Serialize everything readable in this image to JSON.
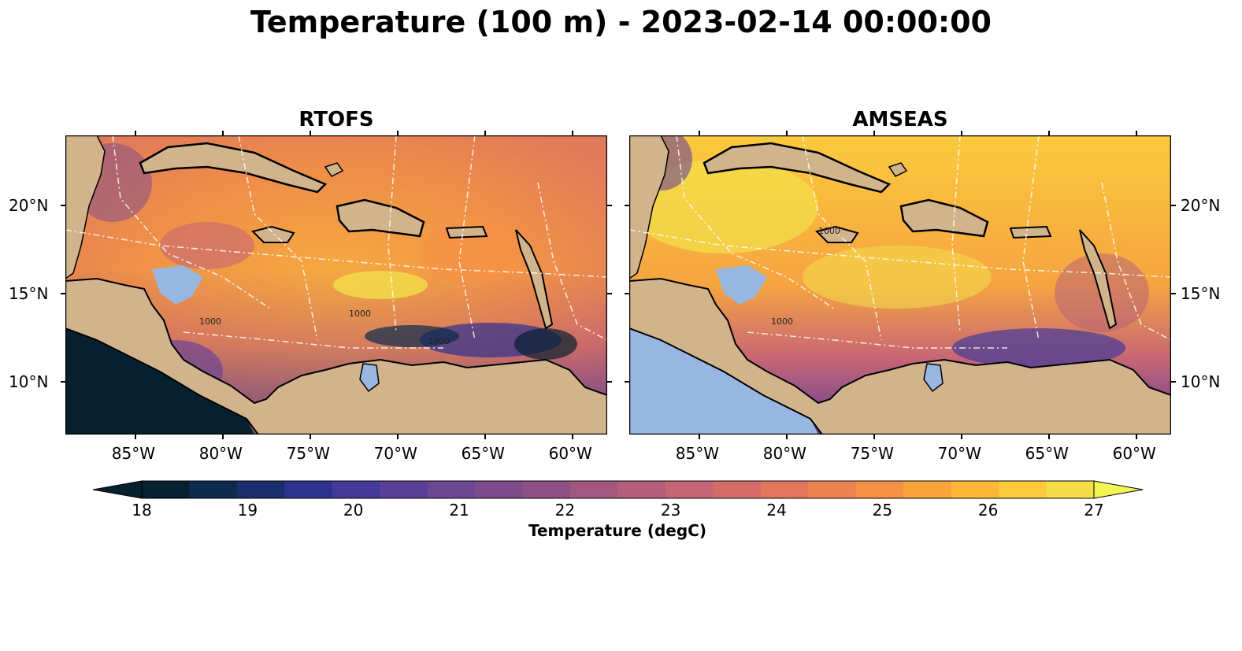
{
  "figure": {
    "title": "Temperature (100 m) - 2023-02-14 00:00:00"
  },
  "panels": [
    {
      "id": "rtofs",
      "title": "RTOFS"
    },
    {
      "id": "amseas",
      "title": "AMSEAS"
    }
  ],
  "axes": {
    "lon_ticks": [
      "85°W",
      "80°W",
      "75°W",
      "70°W",
      "65°W",
      "60°W"
    ],
    "lon_values": [
      -85,
      -80,
      -75,
      -70,
      -65,
      -60
    ],
    "lat_ticks": [
      "20°N",
      "15°N",
      "10°N"
    ],
    "lat_values": [
      20,
      15,
      10
    ],
    "lon_range": [
      -89,
      -58
    ],
    "lat_range": [
      7,
      24
    ]
  },
  "contour_labels": [
    "1000",
    "1000",
    "1000",
    "1000",
    "1000"
  ],
  "colorbar": {
    "label": "Temperature (degC)",
    "ticks": [
      "18",
      "19",
      "20",
      "21",
      "22",
      "23",
      "24",
      "25",
      "26",
      "27"
    ],
    "range": [
      18,
      27
    ],
    "extend": "both",
    "colors": [
      "#06202f",
      "#0c2b4d",
      "#1a2f6b",
      "#2e3190",
      "#453a9a",
      "#5a3f99",
      "#6c4593",
      "#7c4b8c",
      "#8f5086",
      "#a25781",
      "#b45e7b",
      "#c66575",
      "#d56c68",
      "#e4765c",
      "#ee8350",
      "#f69144",
      "#fba33b",
      "#fdb737",
      "#fbca3d",
      "#f3de4a"
    ]
  },
  "colors": {
    "land": "#d2b48c",
    "shallow_water": "#97b6e0",
    "coast": "#000000"
  }
}
